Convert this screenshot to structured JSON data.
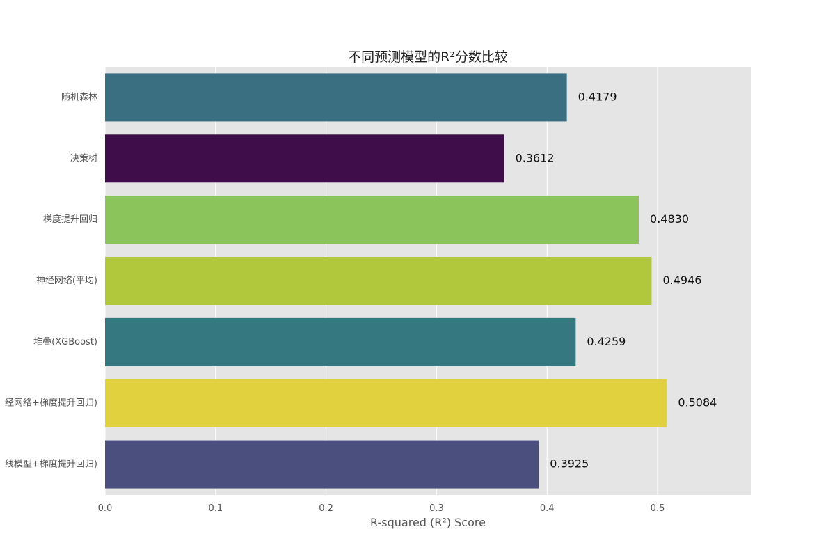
{
  "chart_data": {
    "type": "bar",
    "orientation": "horizontal",
    "title": "不同预测模型的R²分数比较",
    "xlabel": "R-squared (R²) Score",
    "ylabel": "",
    "xlim": [
      0,
      0.585
    ],
    "xticks": [
      0.0,
      0.1,
      0.2,
      0.3,
      0.4,
      0.5
    ],
    "xtick_labels": [
      "0.0",
      "0.1",
      "0.2",
      "0.3",
      "0.4",
      "0.5"
    ],
    "grid": true,
    "grid_axis": "x",
    "legend": "none",
    "categories": [
      "随机森林",
      "决策树",
      "梯度提升回归",
      "神经网络(平均)",
      "堆叠(XGBoost)",
      "经网络+梯度提升回归)",
      "线模型+梯度提升回归)"
    ],
    "values": [
      0.4179,
      0.3612,
      0.483,
      0.4946,
      0.4259,
      0.5084,
      0.3925
    ],
    "value_labels": [
      "0.4179",
      "0.3612",
      "0.4830",
      "0.4946",
      "0.4259",
      "0.5084",
      "0.3925"
    ],
    "bar_colors": [
      "#3a6f82",
      "#3f0d4a",
      "#8bc45a",
      "#b1c83c",
      "#35787f",
      "#e1d13f",
      "#4a4f7e"
    ],
    "background_color": "#e5e5e5",
    "grid_color": "#ffffff"
  }
}
